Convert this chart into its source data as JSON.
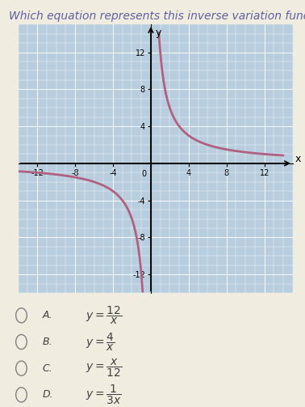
{
  "title": "Which equation represents this inverse variation function?",
  "title_fontsize": 10,
  "title_color": "#6060a0",
  "background_color": "#f0ece0",
  "grid_bg_color": "#b8cede",
  "curve_color": "#b06080",
  "curve_k": 12,
  "xlim": [
    -14,
    15
  ],
  "ylim": [
    -14,
    15
  ],
  "xticks": [
    -12,
    -8,
    -4,
    0,
    4,
    8,
    12
  ],
  "yticks": [
    -12,
    -8,
    -4,
    4,
    8,
    12
  ],
  "xlabel": "x",
  "ylabel": "y",
  "options": [
    {
      "label": "A.",
      "expr": "$y = \\dfrac{12}{x}$"
    },
    {
      "label": "B.",
      "expr": "$y = \\dfrac{4}{x}$"
    },
    {
      "label": "C.",
      "expr": "$y = \\dfrac{x}{12}$"
    },
    {
      "label": "D.",
      "expr": "$y = \\dfrac{1}{3x}$"
    }
  ]
}
